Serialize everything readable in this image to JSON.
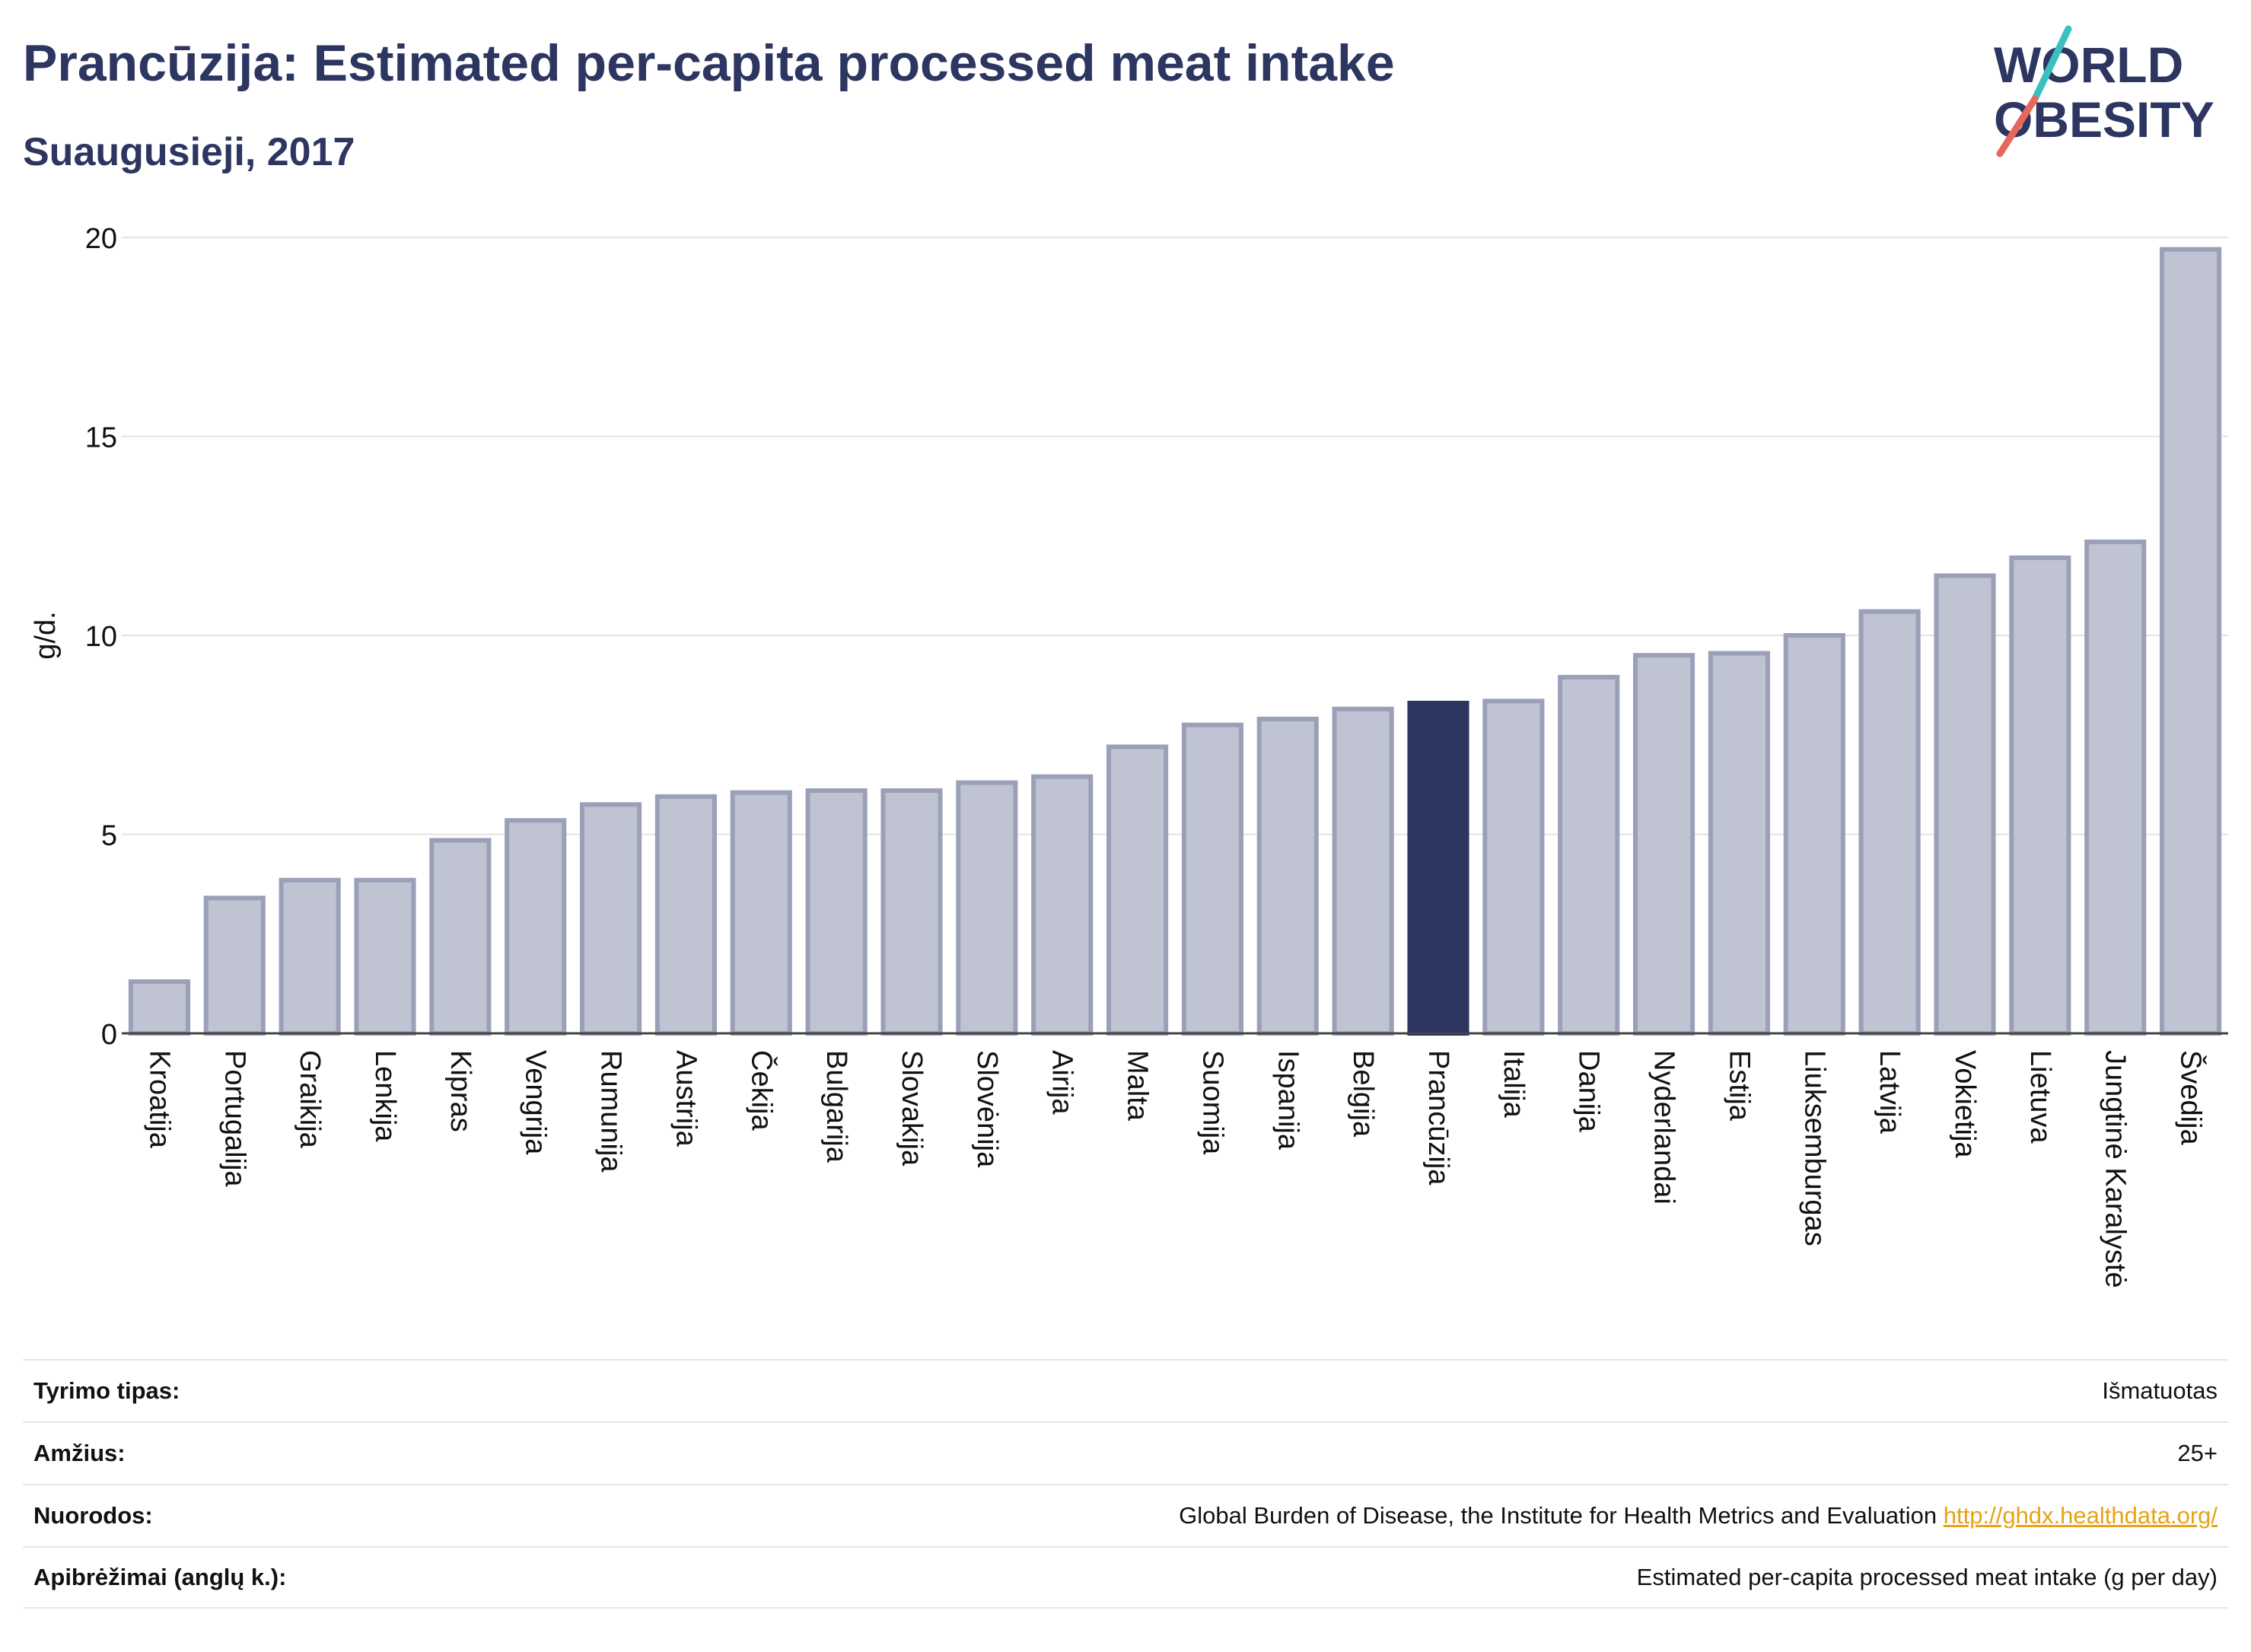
{
  "header": {
    "title": "Prancūzija: Estimated per-capita processed meat intake",
    "subtitle": "Suaugusieji, 2017"
  },
  "logo": {
    "line1": "WORLD",
    "line2": "OBESITY",
    "colors": {
      "text": "#2d3561",
      "slash_top": "#3bbfc1",
      "slash_bottom": "#e8675a"
    }
  },
  "colors": {
    "bar_default": "#c0c3d1",
    "bar_default_stroke": "#9aa0b8",
    "bar_highlight": "#2d3561",
    "title": "#2d3561",
    "link": "#e8a215"
  },
  "chart_data": {
    "type": "bar",
    "ylabel": "g/d.",
    "xlabel": "",
    "ylim": [
      0,
      20
    ],
    "yticks": [
      0,
      5,
      10,
      15,
      20
    ],
    "grid": true,
    "highlight": "Prancūzija",
    "categories": [
      "Kroatija",
      "Portugalija",
      "Graikija",
      "Lenkija",
      "Kipras",
      "Vengrija",
      "Rumunija",
      "Austrija",
      "Čekija",
      "Bulgarija",
      "Slovakija",
      "Slovėnija",
      "Airija",
      "Malta",
      "Suomija",
      "Ispanija",
      "Belgija",
      "Prancūzija",
      "Italija",
      "Danija",
      "Nyderlandai",
      "Estija",
      "Liuksemburgas",
      "Latvija",
      "Vokietija",
      "Lietuva",
      "Jungtinė Karalystė",
      "Švedija"
    ],
    "values": [
      1.3,
      3.4,
      3.85,
      3.85,
      4.85,
      5.35,
      5.75,
      5.95,
      6.05,
      6.1,
      6.1,
      6.3,
      6.45,
      7.2,
      7.75,
      7.9,
      8.15,
      8.3,
      8.35,
      8.95,
      9.5,
      9.55,
      10.0,
      10.6,
      11.5,
      11.95,
      12.35,
      19.7
    ]
  },
  "meta": {
    "rows": [
      {
        "label": "Tyrimo tipas:",
        "value": "Išmatuotas",
        "link": ""
      },
      {
        "label": "Amžius:",
        "value": "25+",
        "link": ""
      },
      {
        "label": "Nuorodos:",
        "value": "Global Burden of Disease, the Institute for Health Metrics and Evaluation",
        "link": "http://ghdx.healthdata.org/"
      },
      {
        "label": "Apibrėžimai (anglų k.):",
        "value": "Estimated per-capita processed meat intake (g per day)",
        "link": ""
      }
    ]
  }
}
